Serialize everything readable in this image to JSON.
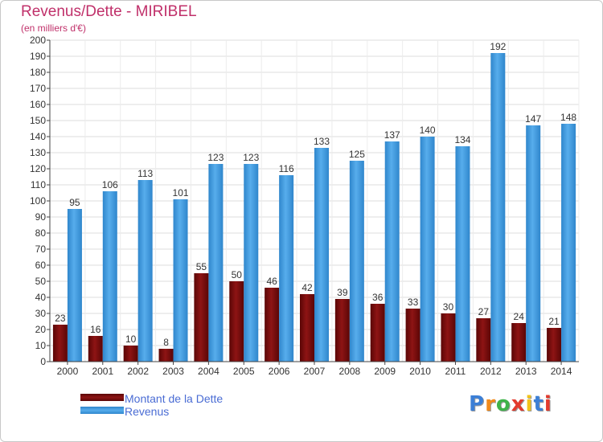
{
  "header": {
    "title": "Revenus/Dette - MIRIBEL",
    "subtitle": "(en milliers d'€)"
  },
  "chart_data": {
    "type": "bar",
    "categories": [
      "2000",
      "2001",
      "2002",
      "2003",
      "2004",
      "2005",
      "2006",
      "2007",
      "2008",
      "2009",
      "2010",
      "2011",
      "2012",
      "2013",
      "2014"
    ],
    "series": [
      {
        "name": "Montant de la Dette",
        "color": "#7a0c0c",
        "values": [
          23,
          16,
          10,
          8,
          55,
          50,
          46,
          42,
          39,
          36,
          33,
          30,
          27,
          24,
          21
        ]
      },
      {
        "name": "Revenus",
        "color": "#3f9ce0",
        "values": [
          95,
          106,
          113,
          101,
          123,
          123,
          116,
          133,
          125,
          137,
          140,
          134,
          192,
          147,
          148
        ]
      }
    ],
    "ylim": [
      0,
      200
    ],
    "yticks": [
      0,
      10,
      20,
      30,
      40,
      50,
      60,
      70,
      80,
      90,
      100,
      110,
      120,
      130,
      140,
      150,
      160,
      170,
      180,
      190,
      200
    ],
    "grid": true,
    "legend_position": "bottom-left",
    "data_labels": true
  },
  "logo": {
    "text": "Proxiti",
    "letters": [
      "P",
      "r",
      "o",
      "x",
      "i",
      "t",
      "i"
    ],
    "colors": [
      "#3b7fd6",
      "#f28a1a",
      "#3fb34a",
      "#e33b2e",
      "#f2c31a",
      "#3b7fd6",
      "#e33b2e"
    ]
  }
}
